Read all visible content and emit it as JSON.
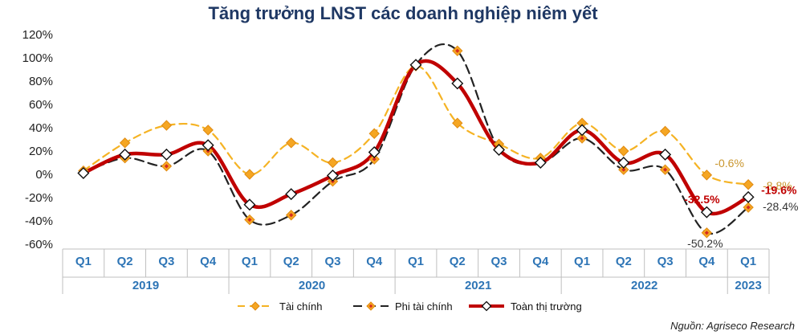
{
  "title": "Tăng trưởng LNST các doanh nghiệp niêm yết",
  "source": "Nguồn: Agriseco Research",
  "colors": {
    "financial": "#f5b324",
    "non_financial": "#222222",
    "market": "#c00000",
    "marker_fill": "#f5a623",
    "marker_inner": "#d62b1f",
    "axis_text": "#2e75b6",
    "year_text": "#2e75b6",
    "label_financial": "#c9962e",
    "label_non_financial": "#333333",
    "label_market": "#c00000"
  },
  "chart_data": {
    "type": "line",
    "title": "Tăng trưởng LNST các doanh nghiệp niêm yết",
    "categories": [
      "Q1",
      "Q2",
      "Q3",
      "Q4",
      "Q1",
      "Q2",
      "Q3",
      "Q4",
      "Q1",
      "Q2",
      "Q3",
      "Q4",
      "Q1",
      "Q2",
      "Q3",
      "Q4",
      "Q1"
    ],
    "years": [
      {
        "label": "2019",
        "count": 4
      },
      {
        "label": "2020",
        "count": 4
      },
      {
        "label": "2021",
        "count": 4
      },
      {
        "label": "2022",
        "count": 4
      },
      {
        "label": "2023",
        "count": 1
      }
    ],
    "ylim": [
      -60,
      120
    ],
    "yticks": [
      -60,
      -40,
      -20,
      0,
      20,
      40,
      60,
      80,
      100,
      120
    ],
    "ytick_labels": [
      "-60%",
      "-40%",
      "-20%",
      "0%",
      "20%",
      "40%",
      "60%",
      "80%",
      "100%",
      "120%"
    ],
    "series": [
      {
        "name": "Tài chính",
        "style": "dashed",
        "values": [
          3,
          27,
          42,
          38,
          0,
          27,
          10,
          35,
          93,
          44,
          26,
          14,
          44,
          20,
          37,
          -0.6,
          -8.8
        ]
      },
      {
        "name": "Phi tài chính",
        "style": "dashed",
        "values": [
          1,
          14,
          7,
          20,
          -39,
          -35,
          -6,
          13,
          94,
          106,
          22,
          10,
          31,
          4,
          4,
          -50.2,
          -28.4
        ]
      },
      {
        "name": "Toàn thị trường",
        "style": "solid",
        "values": [
          1,
          17,
          17,
          25,
          -26,
          -17,
          -1,
          19,
          94,
          78,
          21,
          10,
          38,
          10,
          17,
          -32.5,
          -19.6
        ]
      }
    ],
    "data_labels": [
      {
        "text": "-0.6%",
        "series": "Tài chính",
        "index": 15
      },
      {
        "text": "-8.8%",
        "series": "Tài chính",
        "index": 16
      },
      {
        "text": "-32.5%",
        "series": "Toàn thị trường",
        "index": 15
      },
      {
        "text": "-19.6%",
        "series": "Toàn thị trường",
        "index": 16
      },
      {
        "text": "-50.2%",
        "series": "Phi tài chính",
        "index": 15
      },
      {
        "text": "-28.4%",
        "series": "Phi tài chính",
        "index": 16
      }
    ],
    "legend_position": "bottom-center",
    "grid": false
  }
}
